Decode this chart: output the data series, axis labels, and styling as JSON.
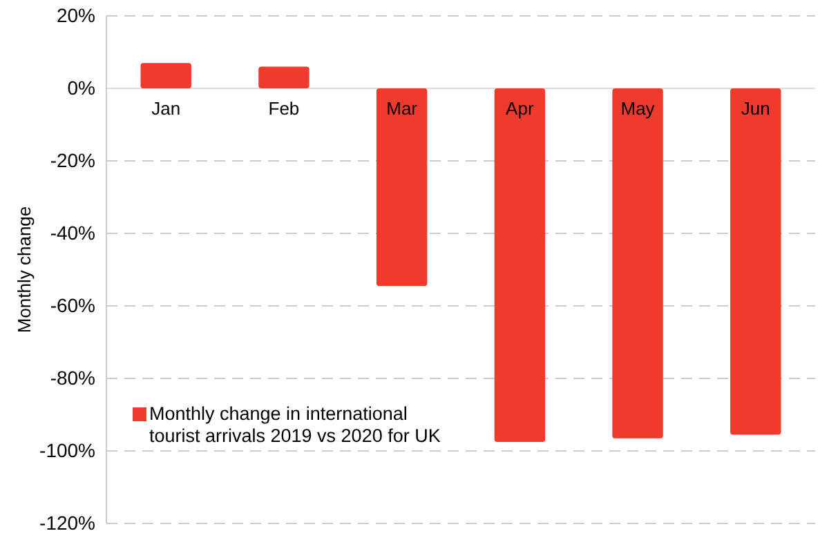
{
  "chart_data": {
    "type": "bar",
    "ylabel": "Monthly  change",
    "categories": [
      "Jan",
      "Feb",
      "Mar",
      "Apr",
      "May",
      "Jun"
    ],
    "series": [
      {
        "name": "Monthly change in international tourist arrivals 2019 vs 2020 for UK",
        "color": "#ef3b2c",
        "values": [
          7,
          6,
          -54.5,
          -97.5,
          -96.5,
          -95.5
        ]
      }
    ],
    "ylim": [
      -120,
      20
    ],
    "yticks": [
      {
        "value": -120,
        "label": "-120%"
      },
      {
        "value": -100,
        "label": "-100%"
      },
      {
        "value": -80,
        "label": "-80%"
      },
      {
        "value": -60,
        "label": "-60%"
      },
      {
        "value": -40,
        "label": "-40%"
      },
      {
        "value": -20,
        "label": "-20%"
      },
      {
        "value": 0,
        "label": "0%"
      },
      {
        "value": 20,
        "label": "20%"
      }
    ],
    "grid": "y",
    "legend": "bottom left"
  }
}
